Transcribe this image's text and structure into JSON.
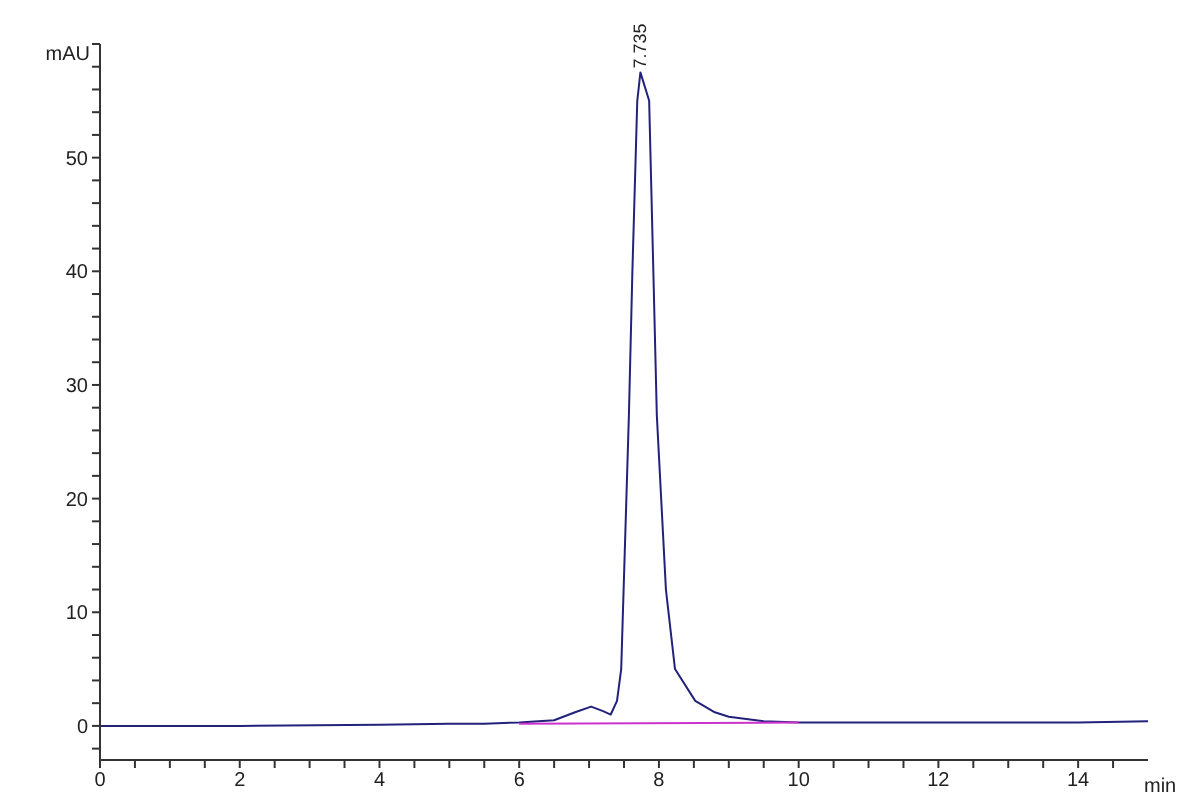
{
  "chart_data": {
    "type": "line",
    "xlabel": "min",
    "ylabel": "mAU",
    "xlim": [
      0,
      15
    ],
    "ylim": [
      -3,
      60
    ],
    "xticks": [
      0,
      {
        "value": 0.5,
        "label": null
      },
      {
        "value": 1,
        "label": null
      },
      {
        "value": 1.5,
        "label": null
      },
      2,
      {
        "value": 2.5,
        "label": null
      },
      {
        "value": 3,
        "label": null
      },
      {
        "value": 3.5,
        "label": null
      },
      4,
      {
        "value": 4.5,
        "label": null
      },
      {
        "value": 5,
        "label": null
      },
      {
        "value": 5.5,
        "label": null
      },
      6,
      {
        "value": 6.5,
        "label": null
      },
      {
        "value": 7,
        "label": null
      },
      {
        "value": 7.5,
        "label": null
      },
      8,
      {
        "value": 8.5,
        "label": null
      },
      {
        "value": 9,
        "label": null
      },
      {
        "value": 9.5,
        "label": null
      },
      10,
      {
        "value": 10.5,
        "label": null
      },
      {
        "value": 11,
        "label": null
      },
      {
        "value": 11.5,
        "label": null
      },
      12,
      {
        "value": 12.5,
        "label": null
      },
      {
        "value": 13,
        "label": null
      },
      {
        "value": 13.5,
        "label": null
      },
      14,
      {
        "value": 14.5,
        "label": null
      }
    ],
    "yticks": [
      {
        "value": -2,
        "label": null
      },
      0,
      {
        "value": 2,
        "label": null
      },
      {
        "value": 4,
        "label": null
      },
      {
        "value": 6,
        "label": null
      },
      {
        "value": 8,
        "label": null
      },
      10,
      {
        "value": 12,
        "label": null
      },
      {
        "value": 14,
        "label": null
      },
      {
        "value": 16,
        "label": null
      },
      {
        "value": 18,
        "label": null
      },
      20,
      {
        "value": 22,
        "label": null
      },
      {
        "value": 24,
        "label": null
      },
      {
        "value": 26,
        "label": null
      },
      {
        "value": 28,
        "label": null
      },
      30,
      {
        "value": 32,
        "label": null
      },
      {
        "value": 34,
        "label": null
      },
      {
        "value": 36,
        "label": null
      },
      {
        "value": 38,
        "label": null
      },
      40,
      {
        "value": 42,
        "label": null
      },
      {
        "value": 44,
        "label": null
      },
      {
        "value": 46,
        "label": null
      },
      {
        "value": 48,
        "label": null
      },
      50,
      {
        "value": 52,
        "label": null
      },
      {
        "value": 54,
        "label": null
      },
      {
        "value": 56,
        "label": null
      },
      {
        "value": 58,
        "label": null
      },
      {
        "value": 60,
        "label": null
      }
    ],
    "grid": false,
    "marker": "none",
    "line_style": "solid",
    "series": [
      {
        "color": "#22227a",
        "x": [
          0,
          2,
          4,
          5,
          5.5,
          6,
          6.5,
          6.8,
          7.03,
          7.2,
          7.31,
          7.4,
          7.46,
          7.57,
          7.62,
          7.69,
          7.735,
          7.86,
          7.92,
          7.97,
          8.1,
          8.23,
          8.52,
          8.8,
          9,
          9.5,
          10,
          11,
          12,
          13,
          14,
          15
        ],
        "values": [
          0,
          0,
          0.1,
          0.2,
          0.2,
          0.3,
          0.5,
          1.2,
          1.7,
          1.3,
          1,
          2.2,
          5,
          27.3,
          40,
          55,
          57.5,
          55,
          40,
          27.3,
          12,
          5,
          2.2,
          1.2,
          0.8,
          0.4,
          0.3,
          0.3,
          0.3,
          0.3,
          0.3,
          0.4
        ]
      },
      {
        "type": "line",
        "color": "#cc33cc",
        "x": [
          6,
          10
        ],
        "values": [
          0.2,
          0.3
        ]
      }
    ],
    "annotations": [
      {
        "text": "7.735",
        "x": 7.735,
        "y": 57.5
      }
    ]
  }
}
